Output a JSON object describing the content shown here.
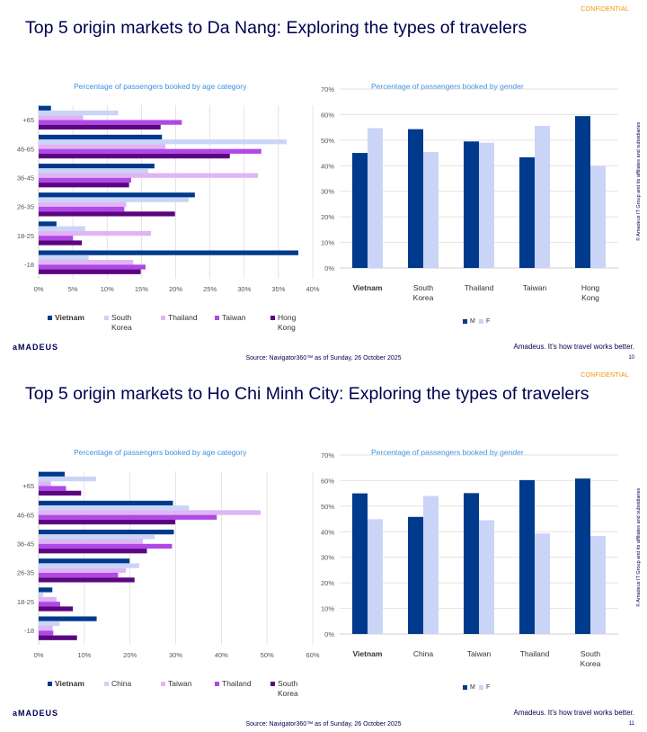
{
  "slides": [
    {
      "confidential": "CONFIDENTIAL",
      "title": "Top 5 origin markets to Da Nang: Exploring the types of travelers",
      "age_chart_title": "Percentage of passengers booked by age category",
      "gender_chart_title": "Percentage of passengers booked by gender",
      "logo": "aMADEUS",
      "tagline": "Amadeus. It's how travel works better.",
      "source": "Source: Navigator360™ as of Sunday, 26 October 2025",
      "page_number": "10",
      "copyright": "© Amadeus IT Group and its affiliates and subsidiaries"
    },
    {
      "confidential": "CONFIDENTIAL",
      "title": "Top 5 origin markets to Ho Chi Minh City: Exploring the types of travelers",
      "age_chart_title": "Percentage of passengers booked by age category",
      "gender_chart_title": "Percentage of passengers booked by gender",
      "logo": "aMADEUS",
      "tagline": "Amadeus. It's how travel works better.",
      "source": "Source: Navigator360™ as of Sunday, 26 October 2025",
      "page_number": "11",
      "copyright": "© Amadeus IT Group and its affiliates and subsidiaries"
    }
  ],
  "colors": {
    "Vietnam": "#003a8c",
    "Korea_light": "#c9d4f7",
    "Thailand_light": "#e0b4f5",
    "Taiwan_mid": "#b048e6",
    "HongKong_dark": "#5c0580",
    "M": "#003a8c",
    "F": "#c9d4f7",
    "grid": "#d9d9d9",
    "axis_text": "#555555"
  },
  "chart_data": [
    {
      "type": "bar",
      "orientation": "horizontal",
      "title": "Percentage of passengers booked by age category",
      "categories": [
        "+65",
        "46-65",
        "36-45",
        "26-35",
        "18-25",
        "-18"
      ],
      "xlim": [
        0,
        40
      ],
      "xticks": [
        "0%",
        "5%",
        "10%",
        "15%",
        "20%",
        "25%",
        "30%",
        "35%",
        "40%"
      ],
      "legend_position": "bottom",
      "series": [
        {
          "name": "Vietnam",
          "color": "#003a8c",
          "values": [
            1.8,
            18.0,
            16.9,
            22.8,
            2.6,
            37.9
          ]
        },
        {
          "name": "South Korea",
          "color": "#c9d4f7",
          "values": [
            11.6,
            36.2,
            16.0,
            21.9,
            6.8,
            7.3
          ]
        },
        {
          "name": "Thailand",
          "color": "#e0b4f5",
          "values": [
            6.5,
            18.5,
            32.0,
            12.8,
            16.4,
            13.8
          ]
        },
        {
          "name": "Taiwan",
          "color": "#b048e6",
          "values": [
            20.9,
            32.5,
            13.5,
            12.5,
            5.0,
            15.6
          ]
        },
        {
          "name": "Hong Kong",
          "color": "#5c0580",
          "values": [
            17.8,
            27.9,
            13.2,
            19.9,
            6.3,
            14.9
          ]
        }
      ]
    },
    {
      "type": "bar",
      "orientation": "vertical",
      "title": "Percentage of passengers booked by gender",
      "categories": [
        "Vietnam",
        "South Korea",
        "Thailand",
        "Taiwan",
        "Hong Kong"
      ],
      "ylim": [
        0,
        70
      ],
      "yticks": [
        "0%",
        "10%",
        "20%",
        "30%",
        "40%",
        "50%",
        "60%",
        "70%"
      ],
      "legend_position": "bottom",
      "series": [
        {
          "name": "M",
          "color": "#003a8c",
          "values": [
            45.0,
            54.3,
            49.5,
            43.3,
            59.4
          ]
        },
        {
          "name": "F",
          "color": "#c9d4f7",
          "values": [
            54.7,
            45.4,
            49.0,
            55.6,
            39.8
          ]
        }
      ]
    },
    {
      "type": "bar",
      "orientation": "horizontal",
      "title": "Percentage of passengers booked by age category",
      "categories": [
        "+65",
        "46-65",
        "36-45",
        "26-35",
        "18-25",
        "-18"
      ],
      "xlim": [
        0,
        60
      ],
      "xticks": [
        "0%",
        "10%",
        "20%",
        "30%",
        "40%",
        "50%",
        "60%"
      ],
      "legend_position": "bottom",
      "series": [
        {
          "name": "Vietnam",
          "color": "#003a8c",
          "values": [
            5.7,
            29.4,
            29.6,
            19.9,
            3.0,
            12.7
          ]
        },
        {
          "name": "China",
          "color": "#c9d4f7",
          "values": [
            12.6,
            32.9,
            25.4,
            22.0,
            1.0,
            4.6
          ]
        },
        {
          "name": "Taiwan",
          "color": "#e0b4f5",
          "values": [
            2.7,
            48.6,
            22.8,
            19.1,
            3.9,
            3.1
          ]
        },
        {
          "name": "Thailand",
          "color": "#b048e6",
          "values": [
            6.0,
            39.0,
            29.2,
            17.4,
            4.7,
            3.2
          ]
        },
        {
          "name": "South Korea",
          "color": "#5c0580",
          "values": [
            9.3,
            29.9,
            23.7,
            21.0,
            7.5,
            8.4
          ]
        }
      ]
    },
    {
      "type": "bar",
      "orientation": "vertical",
      "title": "Percentage of passengers booked by gender",
      "categories": [
        "Vietnam",
        "China",
        "Taiwan",
        "Thailand",
        "South Korea"
      ],
      "ylim": [
        0,
        70
      ],
      "yticks": [
        "0%",
        "10%",
        "20%",
        "30%",
        "40%",
        "50%",
        "60%",
        "70%"
      ],
      "legend_position": "bottom",
      "series": [
        {
          "name": "M",
          "color": "#003a8c",
          "values": [
            55.0,
            45.8,
            55.1,
            60.2,
            60.8
          ]
        },
        {
          "name": "F",
          "color": "#c9d4f7",
          "values": [
            44.9,
            54.0,
            44.5,
            39.3,
            38.3
          ]
        }
      ]
    }
  ]
}
